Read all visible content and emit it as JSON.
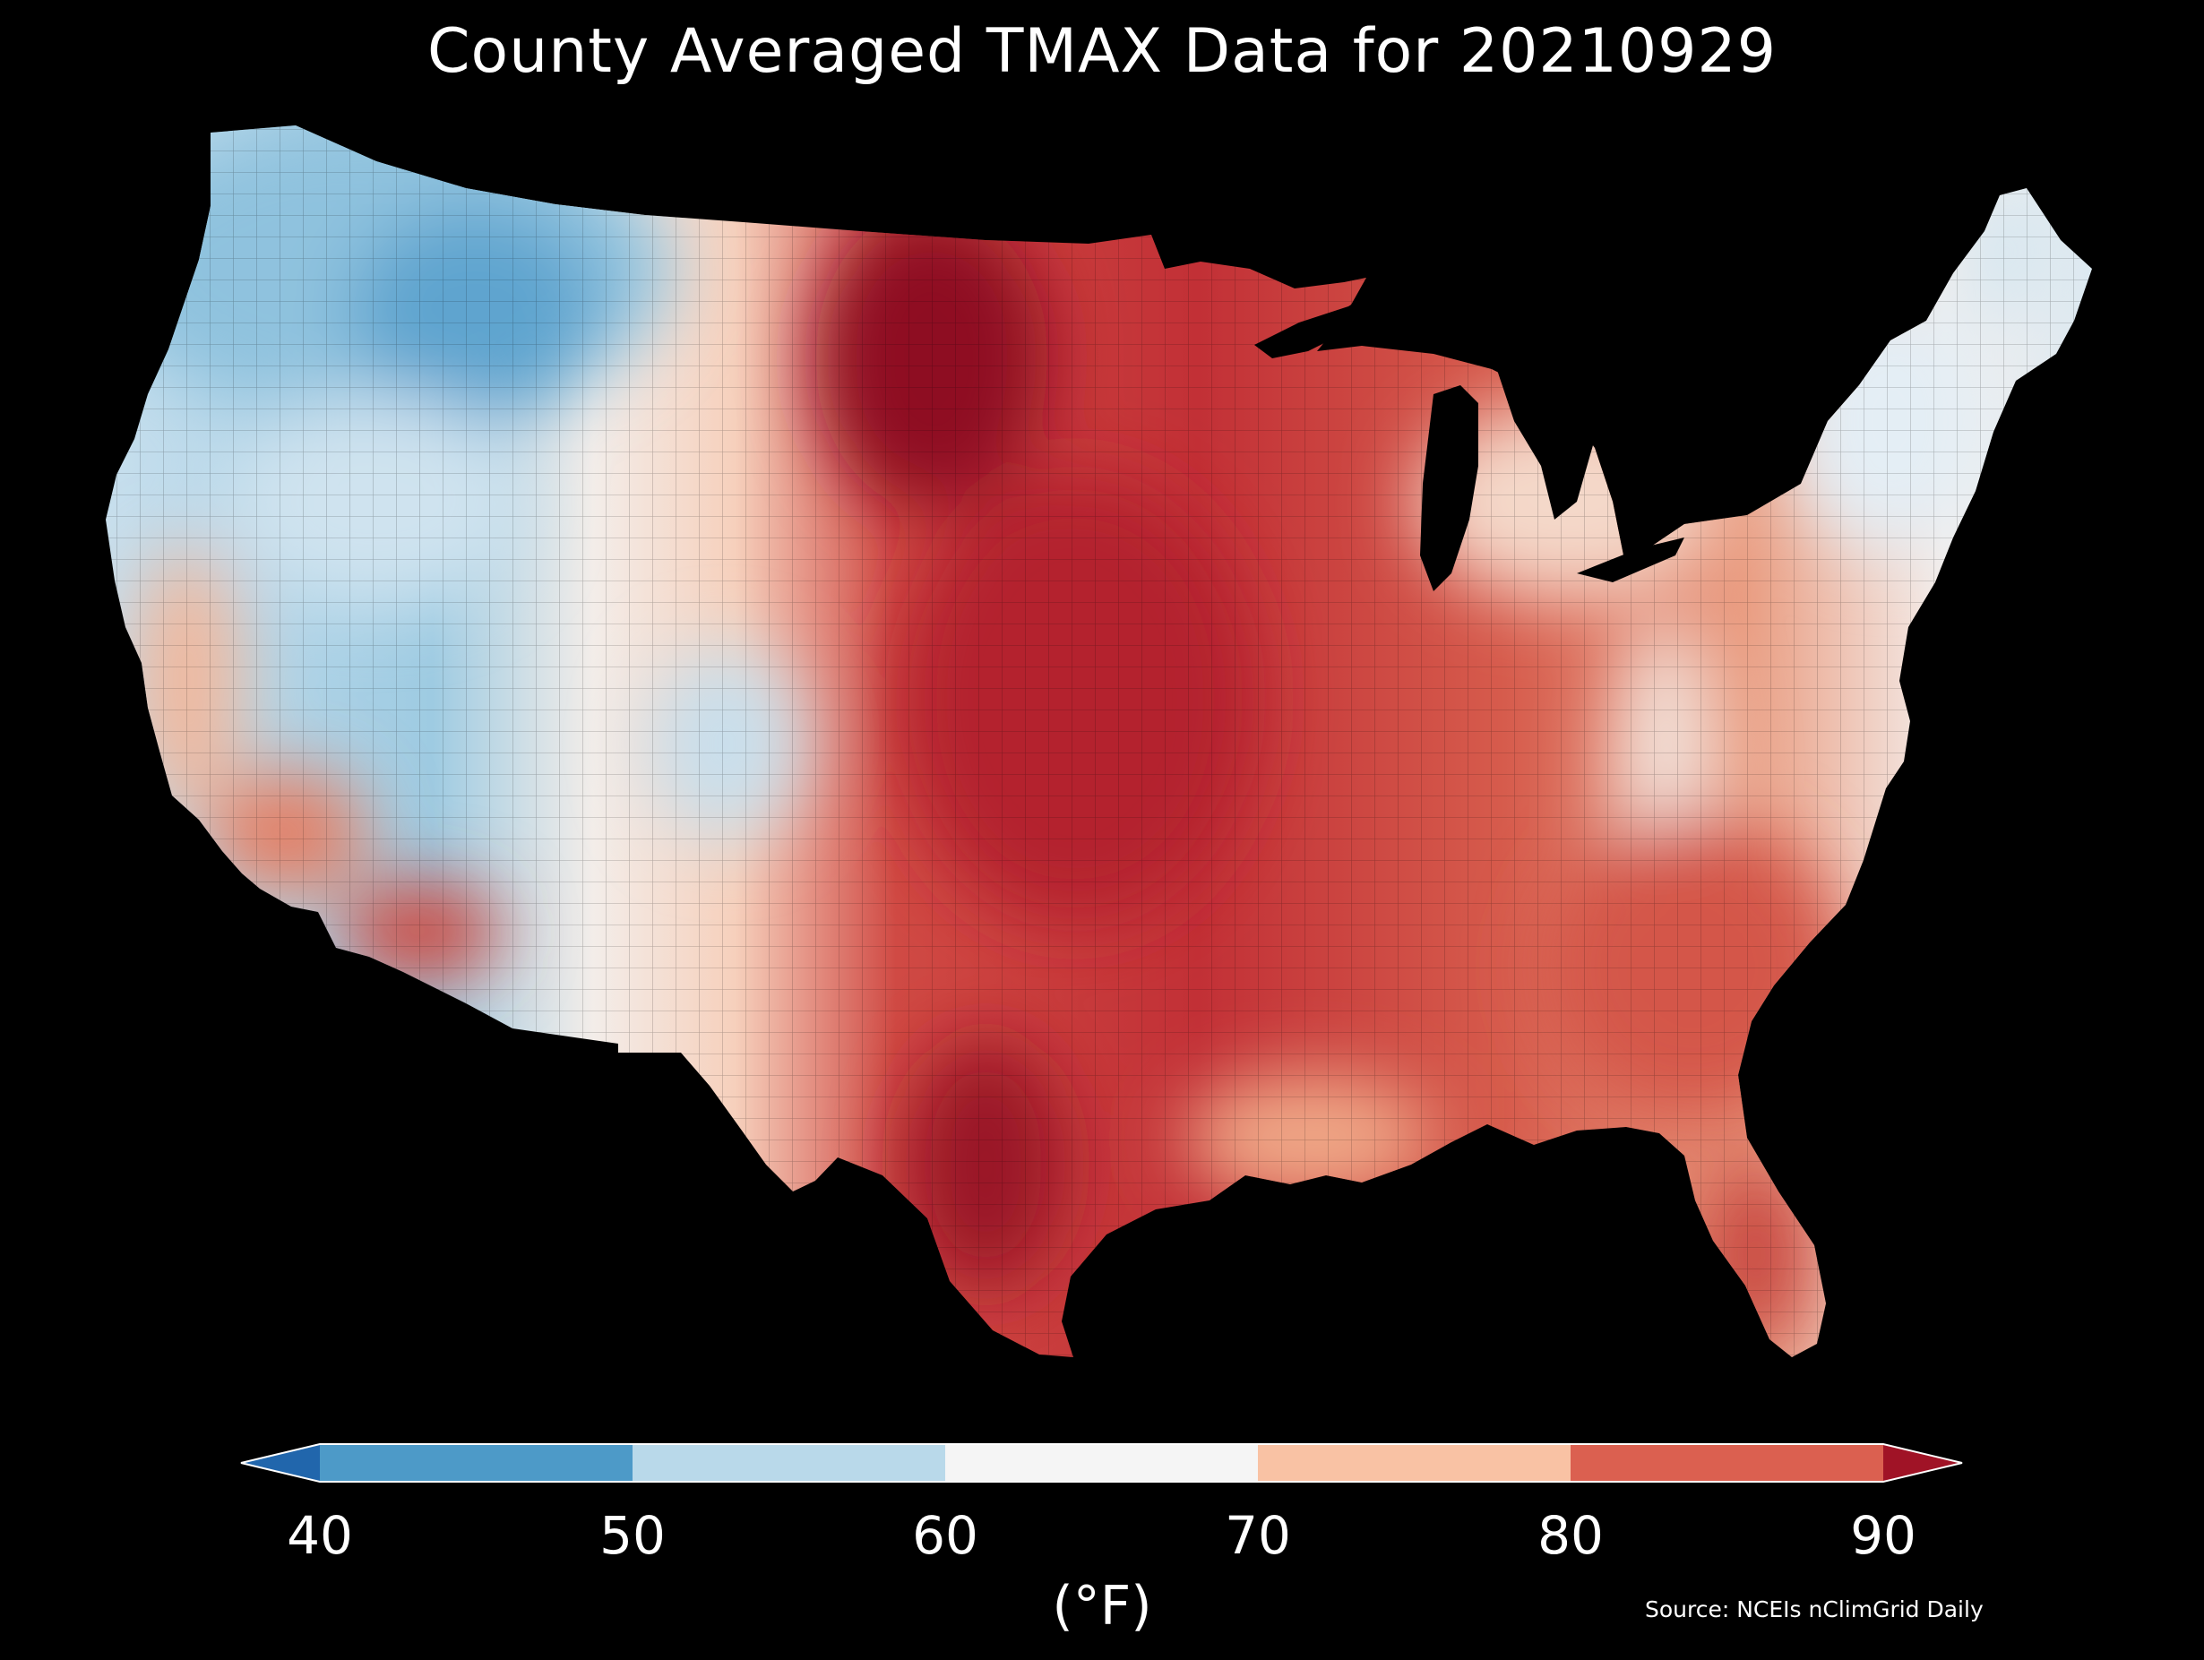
{
  "title": "County Averaged TMAX Data for 20210929",
  "colorbar": {
    "ticks": [
      "40",
      "50",
      "60",
      "70",
      "80",
      "90"
    ],
    "label": "(°F)",
    "extend": "both",
    "bins": [
      {
        "range": "<40",
        "color": "#2166ac"
      },
      {
        "range": "40-50",
        "color": "#4d9ac8"
      },
      {
        "range": "50-60",
        "color": "#b9d9ea"
      },
      {
        "range": "60-70",
        "color": "#f5f5f5"
      },
      {
        "range": "70-80",
        "color": "#f9c2a4"
      },
      {
        "range": "80-90",
        "color": "#db6050"
      },
      {
        "range": ">90",
        "color": "#a01326"
      }
    ]
  },
  "source": "Source: NCEIs nClimGrid Daily",
  "map": {
    "region": "Contiguous United States, county level",
    "variable": "TMAX",
    "units": "°F"
  }
}
